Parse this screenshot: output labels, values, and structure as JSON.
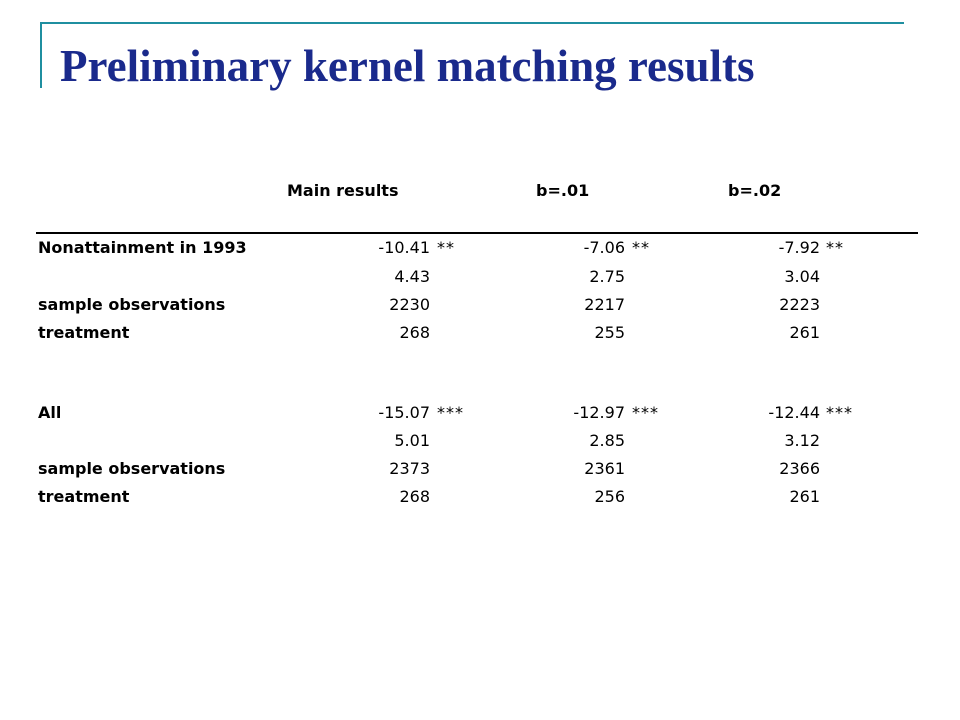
{
  "slide": {
    "title": "Preliminary kernel matching results"
  },
  "table": {
    "headers": [
      "Main results",
      "b=.01",
      "b=.02"
    ],
    "rows": [
      {
        "label": "Nonattainment in 1993",
        "cells": [
          {
            "v": "-10.41",
            "s": "**"
          },
          {
            "v": "-7.06",
            "s": "**"
          },
          {
            "v": "-7.92",
            "s": "**"
          }
        ]
      },
      {
        "label": "",
        "cells": [
          {
            "v": "4.43",
            "s": ""
          },
          {
            "v": "2.75",
            "s": ""
          },
          {
            "v": "3.04",
            "s": ""
          }
        ]
      },
      {
        "label": "sample observations",
        "cells": [
          {
            "v": "2230",
            "s": ""
          },
          {
            "v": "2217",
            "s": ""
          },
          {
            "v": "2223",
            "s": ""
          }
        ]
      },
      {
        "label": "treatment",
        "cells": [
          {
            "v": "268",
            "s": ""
          },
          {
            "v": "255",
            "s": ""
          },
          {
            "v": "261",
            "s": ""
          }
        ]
      },
      {
        "label": "All",
        "cells": [
          {
            "v": "-15.07",
            "s": "***"
          },
          {
            "v": "-12.97",
            "s": "***"
          },
          {
            "v": "-12.44",
            "s": "***"
          }
        ]
      },
      {
        "label": "",
        "cells": [
          {
            "v": "5.01",
            "s": ""
          },
          {
            "v": "2.85",
            "s": ""
          },
          {
            "v": "3.12",
            "s": ""
          }
        ]
      },
      {
        "label": "sample observations",
        "cells": [
          {
            "v": "2373",
            "s": ""
          },
          {
            "v": "2361",
            "s": ""
          },
          {
            "v": "2366",
            "s": ""
          }
        ]
      },
      {
        "label": "treatment",
        "cells": [
          {
            "v": "268",
            "s": ""
          },
          {
            "v": "256",
            "s": ""
          },
          {
            "v": "261",
            "s": ""
          }
        ]
      }
    ]
  },
  "colors": {
    "title": "#1a2a8c",
    "accent": "#1f8fa0"
  }
}
